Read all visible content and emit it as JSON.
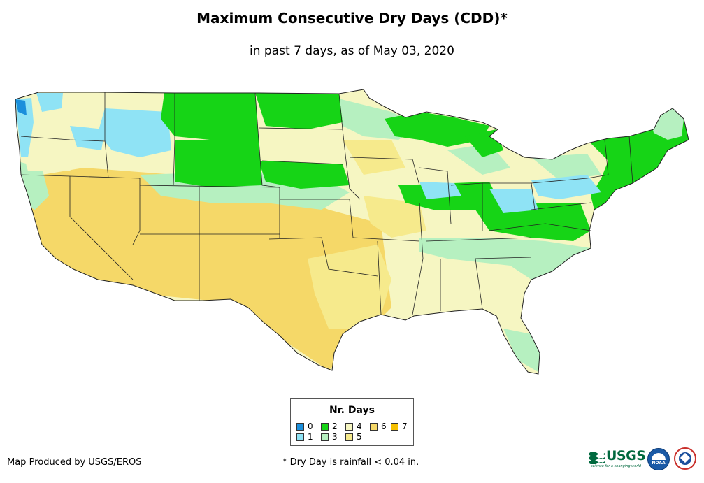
{
  "header": {
    "title": "Maximum Consecutive Dry Days (CDD)*",
    "subtitle": "in past 7 days, as of May 03, 2020"
  },
  "legend": {
    "title": "Nr. Days",
    "items": [
      {
        "label": "0",
        "color": "#1a8fdc"
      },
      {
        "label": "1",
        "color": "#8fe3f5"
      },
      {
        "label": "2",
        "color": "#16d416"
      },
      {
        "label": "3",
        "color": "#b6f0c0"
      },
      {
        "label": "4",
        "color": "#f6f6c2"
      },
      {
        "label": "5",
        "color": "#f6ea8c"
      },
      {
        "label": "6",
        "color": "#f5d868"
      },
      {
        "label": "7",
        "color": "#f5c000"
      }
    ]
  },
  "footer": {
    "credit": "Map Produced by USGS/EROS",
    "note": "* Dry Day is rainfall < 0.04 in."
  },
  "logos": {
    "usgs": "USGS",
    "usgs_tagline": "science for a changing world",
    "noaa": "NOAA"
  }
}
